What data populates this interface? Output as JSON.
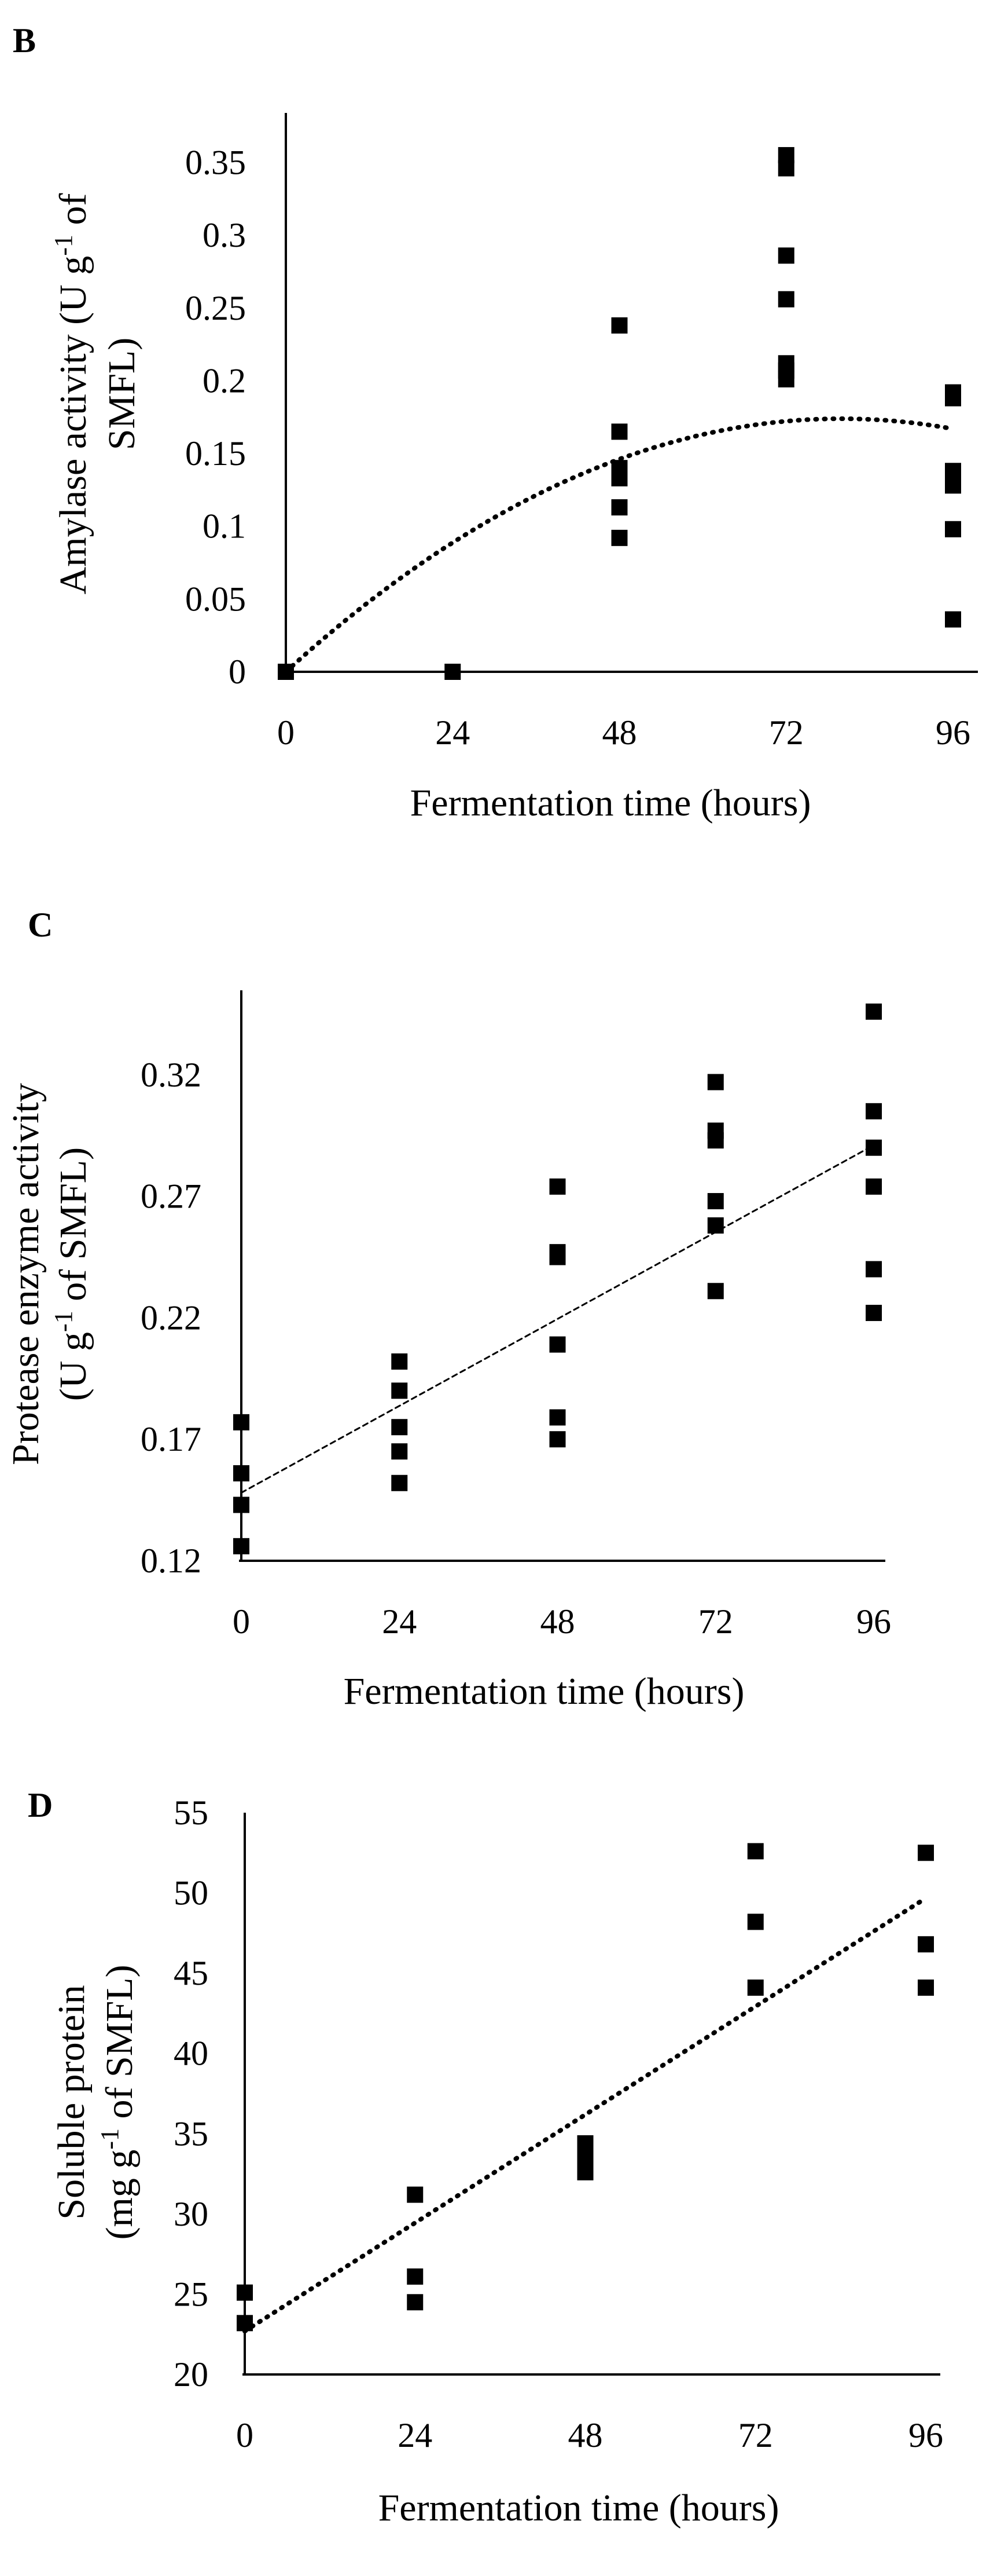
{
  "chart_data": [
    {
      "type": "scatter",
      "panel": "B",
      "xlabel": "Fermentation time (hours)",
      "ylabel_lines": [
        "Amylase activity (U g",
        "-1",
        " of",
        "SMFL)"
      ],
      "xlim": [
        0,
        96
      ],
      "ylim": [
        0,
        0.39
      ],
      "x_ticks": [
        0,
        24,
        48,
        72,
        96
      ],
      "x_tick_labels": [
        "0",
        "24",
        "48",
        "72",
        "96"
      ],
      "y_ticks": [
        0,
        0.05,
        0.1,
        0.15,
        0.2,
        0.25,
        0.3,
        0.35
      ],
      "y_tick_labels": [
        "0",
        "0.05",
        "0.1",
        "0.15",
        "0.2",
        "0.25",
        "0.3",
        "0.35"
      ],
      "series": [
        {
          "name": "observations",
          "x": [
            0,
            24,
            48,
            48,
            48,
            48,
            48,
            48,
            72,
            72,
            72,
            72,
            72,
            72,
            72,
            96,
            96,
            96,
            96,
            96,
            96
          ],
          "y": [
            0,
            0,
            0.238,
            0.165,
            0.14,
            0.133,
            0.113,
            0.092,
            0.355,
            0.346,
            0.286,
            0.256,
            0.212,
            0.207,
            0.201,
            0.192,
            0.188,
            0.138,
            0.128,
            0.098,
            0.036
          ]
        }
      ],
      "trendline": {
        "kind": "polynomial-2",
        "coef": [
          0,
          0.00435,
          -2.72e-05
        ],
        "x_range": [
          0,
          96
        ],
        "style": "dotted"
      }
    },
    {
      "type": "scatter",
      "panel": "C",
      "xlabel": "Fermentation time (hours)",
      "ylabel_lines": [
        "Protease enzyme activity",
        "(U g",
        "-1",
        " of SMFL)"
      ],
      "xlim": [
        0,
        96
      ],
      "ylim": [
        0.12,
        0.35
      ],
      "x_ticks": [
        0,
        24,
        48,
        72,
        96
      ],
      "x_tick_labels": [
        "0",
        "24",
        "48",
        "72",
        "96"
      ],
      "y_ticks": [
        0.12,
        0.17,
        0.22,
        0.27,
        0.32
      ],
      "y_tick_labels": [
        "0.12",
        "0.17",
        "0.22",
        "0.27",
        "0.32"
      ],
      "series": [
        {
          "name": "observations",
          "x": [
            0,
            0,
            0,
            0,
            24,
            24,
            24,
            24,
            24,
            48,
            48,
            48,
            48,
            48,
            48,
            72,
            72,
            72,
            72,
            72,
            72,
            96,
            96,
            96,
            96,
            96,
            96
          ],
          "y": [
            0.177,
            0.156,
            0.143,
            0.126,
            0.202,
            0.19,
            0.175,
            0.165,
            0.152,
            0.274,
            0.247,
            0.245,
            0.209,
            0.179,
            0.17,
            0.317,
            0.297,
            0.293,
            0.268,
            0.258,
            0.231,
            0.346,
            0.305,
            0.29,
            0.274,
            0.24,
            0.222
          ]
        }
      ],
      "trendline": {
        "kind": "linear",
        "coef": [
          0.148,
          0.00149
        ],
        "x_range": [
          0,
          96
        ],
        "style": "dashed"
      }
    },
    {
      "type": "scatter",
      "panel": "D",
      "xlabel": "Fermentation time (hours)",
      "ylabel_lines": [
        "Soluble protein",
        "(mg g",
        "-1",
        " of SMFL)"
      ],
      "xlim": [
        0,
        96
      ],
      "ylim": [
        20,
        55
      ],
      "x_ticks": [
        0,
        24,
        48,
        72,
        96
      ],
      "x_tick_labels": [
        "0",
        "24",
        "48",
        "72",
        "96"
      ],
      "y_ticks": [
        20,
        25,
        30,
        35,
        40,
        45,
        50,
        55
      ],
      "y_tick_labels": [
        "20",
        "25",
        "30",
        "35",
        "40",
        "45",
        "50",
        "55"
      ],
      "series": [
        {
          "name": "observations",
          "x": [
            0,
            0,
            24,
            24,
            24,
            48,
            48,
            48,
            48,
            72,
            72,
            72,
            96,
            96,
            96
          ],
          "y": [
            25.1,
            23.2,
            31.2,
            26.1,
            24.5,
            34.4,
            33.8,
            33.1,
            32.6,
            52.6,
            48.2,
            44.1,
            52.5,
            46.8,
            44.1
          ]
        }
      ],
      "trendline": {
        "kind": "linear",
        "coef": [
          22.7,
          0.281
        ],
        "x_range": [
          0,
          96
        ],
        "style": "dotted"
      }
    }
  ]
}
